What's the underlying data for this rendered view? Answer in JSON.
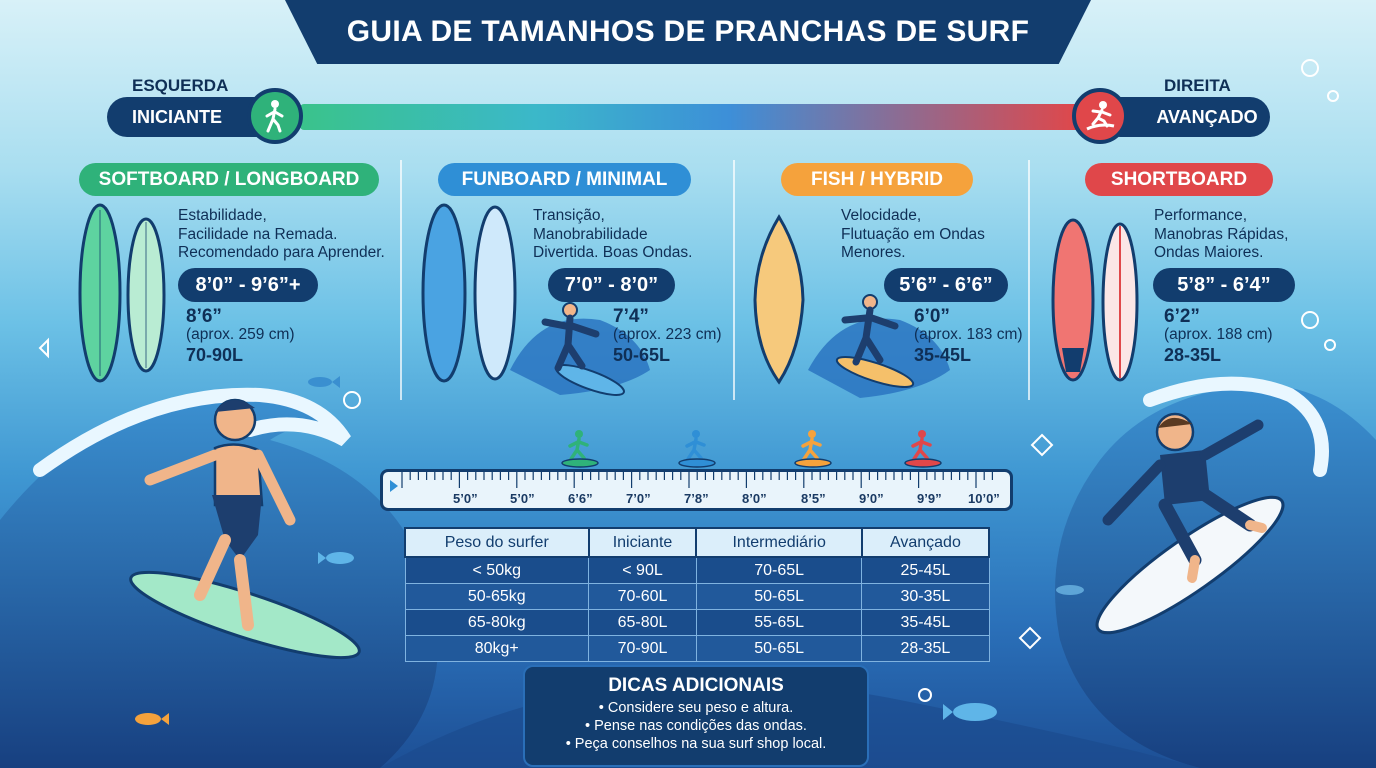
{
  "title": "GUIA DE TAMANHOS DE PRANCHAS DE SURF",
  "scale": {
    "left_caption": "ESQUERDA",
    "right_caption": "DIREITA",
    "left_label": "INICIANTE",
    "right_label": "AVANÇADO",
    "left_icon": "walking-person-icon",
    "right_icon": "surfer-icon"
  },
  "categories": [
    {
      "name": "SOFTBOARD / LONGBOARD",
      "color": "#2fb27a",
      "desc": [
        "Estabilidade,",
        "Facilidade na Remada.",
        "Recomendado para Aprender."
      ],
      "range": "8’0” - 9’6”+",
      "size": "8’6”",
      "cm": "(aprox. 259 cm)",
      "volume": "70-90L"
    },
    {
      "name": "FUNBOARD / MINIMAL",
      "color": "#2f8fd6",
      "desc": [
        "Transição,",
        "Manobrabilidade",
        "Divertida. Boas Ondas."
      ],
      "range": "7’0” - 8’0”",
      "size": "7’4”",
      "cm": "(aprox. 223 cm)",
      "volume": "50-65L"
    },
    {
      "name": "FISH / HYBRID",
      "color": "#f5a23c",
      "desc": [
        "Velocidade,",
        "Flutuação em Ondas",
        "Menores."
      ],
      "range": "5’6” - 6’6”",
      "size": "6’0”",
      "cm": "(aprox. 183 cm)",
      "volume": "35-45L"
    },
    {
      "name": "SHORTBOARD",
      "color": "#e0474a",
      "desc": [
        "Performance,",
        "Manobras Rápidas,",
        "Ondas Maiores."
      ],
      "range": "5’8” - 6’4”",
      "size": "6’2”",
      "cm": "(aprox. 188 cm)",
      "volume": "28-35L"
    }
  ],
  "ruler": {
    "labels": [
      "5’0”",
      "5’0”",
      "6’6”",
      "7’0”",
      "7’8”",
      "8’0”",
      "8’5”",
      "9’0”",
      "9’9”",
      "10’0”"
    ]
  },
  "table": {
    "headers": [
      "Peso do surfer",
      "Iniciante",
      "Intermediário",
      "Avançado"
    ],
    "rows": [
      [
        "< 50kg",
        "< 90L",
        "70-65L",
        "25-45L"
      ],
      [
        "50-65kg",
        "70-60L",
        "50-65L",
        "30-35L"
      ],
      [
        "65-80kg",
        "65-80L",
        "55-65L",
        "35-45L"
      ],
      [
        "80kg+",
        "70-90L",
        "50-65L",
        "28-35L"
      ]
    ]
  },
  "tips": {
    "title": "DICAS ADICIONAIS",
    "items": [
      "• Considere seu peso e altura.",
      "• Pense nas condições das ondas.",
      "• Peça conselhos na sua surf shop local."
    ]
  }
}
